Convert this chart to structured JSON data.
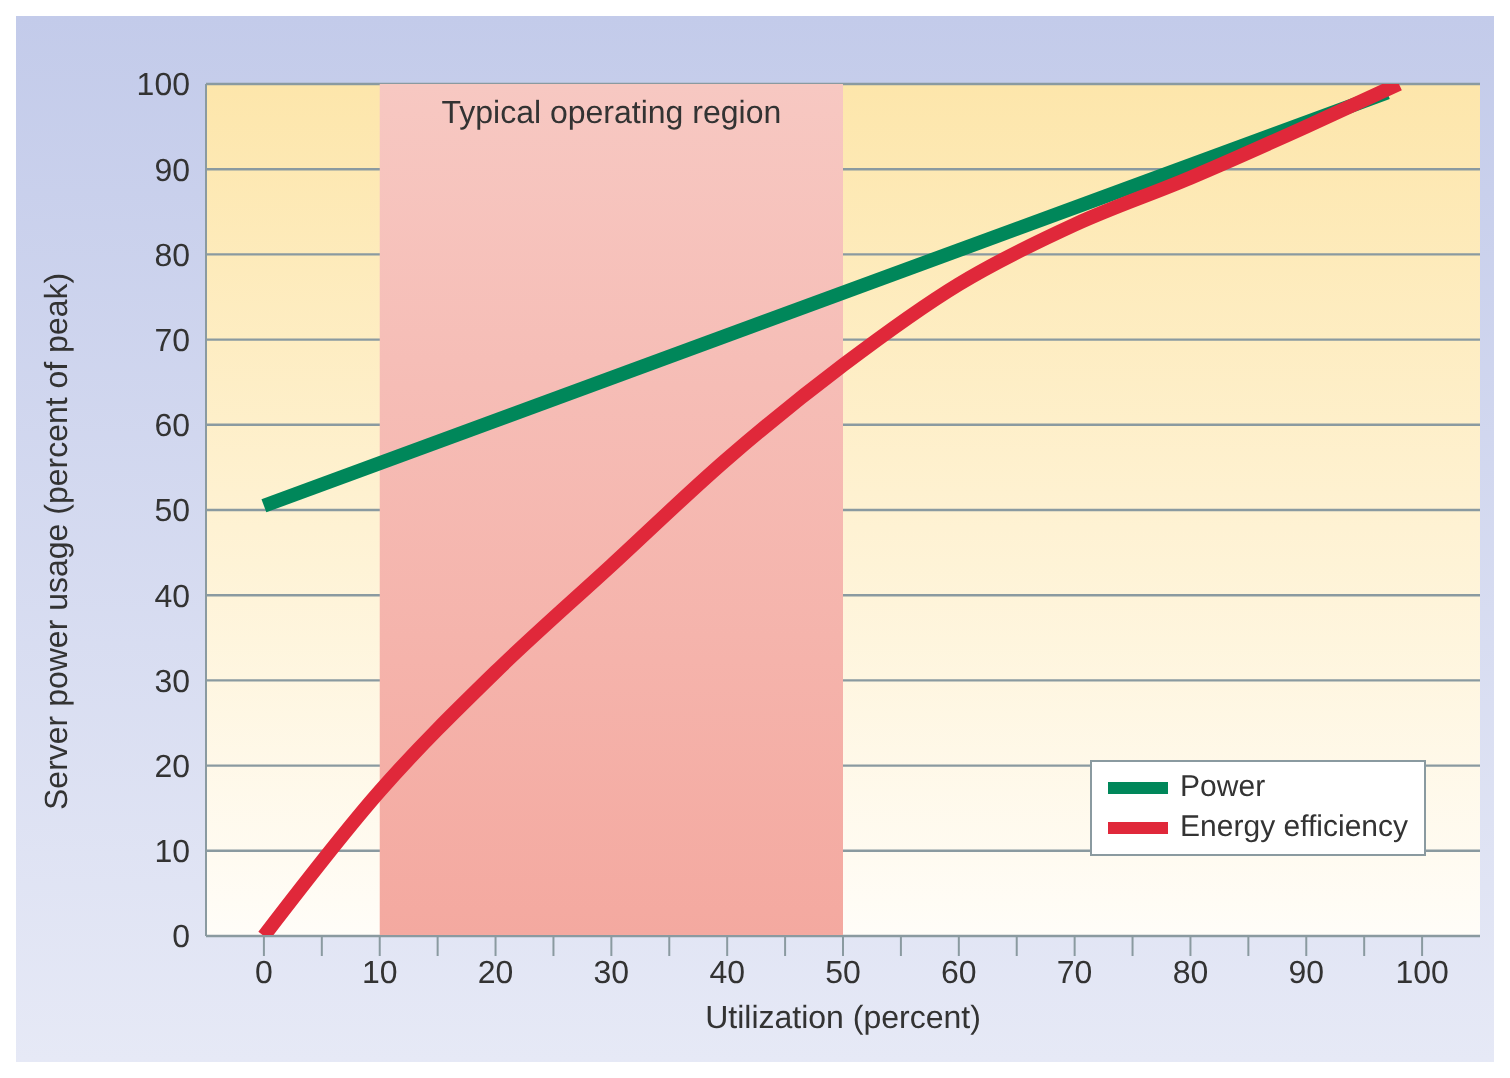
{
  "chart_data": {
    "type": "line",
    "xlabel": "Utilization (percent)",
    "ylabel": "Server power usage (percent of peak)",
    "xlim": [
      -5,
      105
    ],
    "ylim": [
      0,
      100
    ],
    "xticks": [
      0,
      {
        "value": 5,
        "label": null
      },
      10,
      {
        "value": 15,
        "label": null
      },
      20,
      {
        "value": 25,
        "label": null
      },
      30,
      {
        "value": 35,
        "label": null
      },
      40,
      {
        "value": 45,
        "label": null
      },
      50,
      {
        "value": 55,
        "label": null
      },
      60,
      {
        "value": 65,
        "label": null
      },
      70,
      {
        "value": 75,
        "label": null
      },
      80,
      {
        "value": 85,
        "label": null
      },
      90,
      {
        "value": 95,
        "label": null
      },
      100
    ],
    "yticks": [
      0,
      10,
      20,
      30,
      40,
      50,
      60,
      70,
      80,
      90,
      100
    ],
    "grid": "y",
    "legend": "bottom right",
    "marker": "none",
    "line_style": "solid",
    "bands": [
      {
        "axis": "x",
        "from": 10,
        "to": 50,
        "label": "Typical operating region",
        "color": "#f4a9a0"
      }
    ],
    "series": [
      {
        "name": "Power",
        "color": "#00875a",
        "x": [
          0,
          97
        ],
        "values": [
          50.5,
          99
        ]
      },
      {
        "name": "Energy efficiency",
        "color": "#e0283a",
        "x": [
          0,
          10,
          20,
          30,
          40,
          50,
          60,
          70,
          80,
          90,
          98
        ],
        "values": [
          0,
          17,
          31,
          43.5,
          56,
          67,
          76.5,
          83.5,
          89,
          95,
          100
        ]
      }
    ]
  }
}
